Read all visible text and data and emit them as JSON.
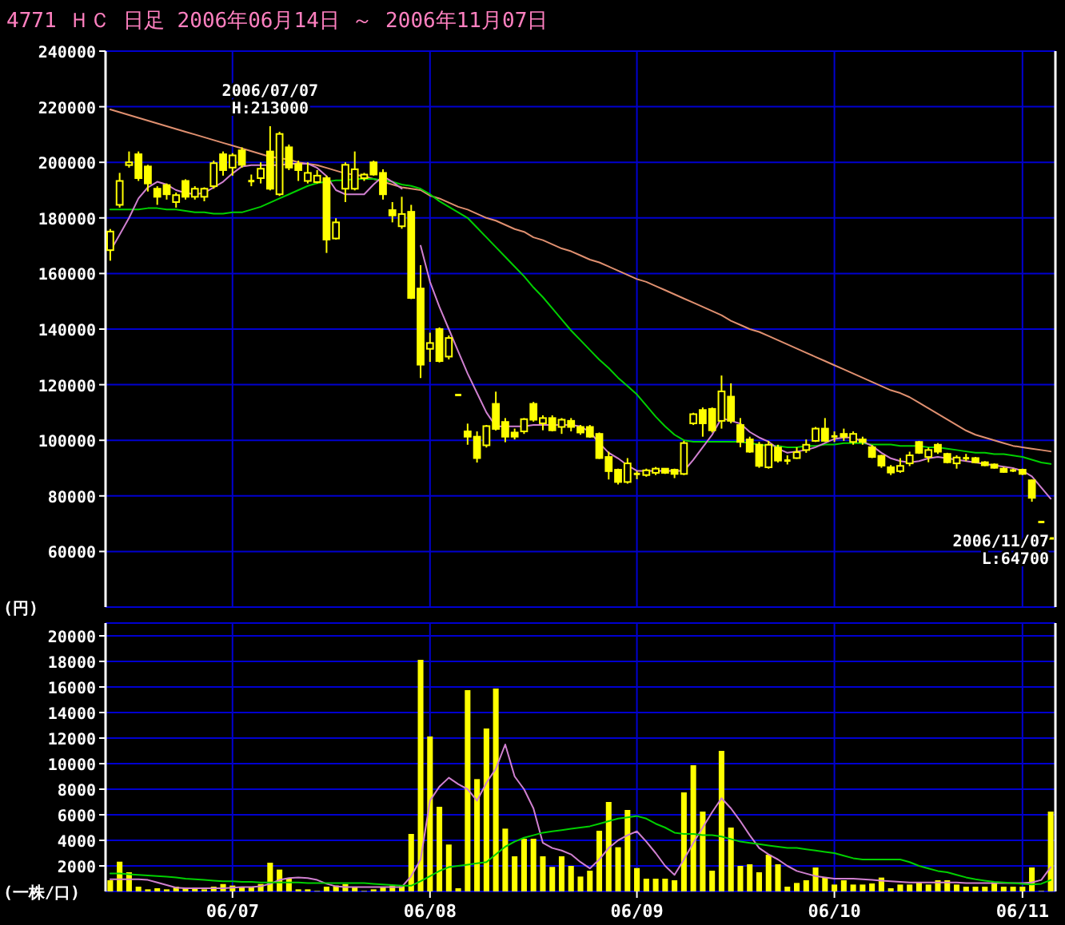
{
  "chart_data": [
    {
      "type": "candlestick",
      "title": "4771 ＨＣ 日足 2006年06月14日 ～ 2006年11月07日",
      "ylabel": "(円)",
      "color": "#ffff00",
      "grid": true,
      "tick_labels": "y",
      "categories": [
        null,
        null,
        null,
        null,
        null,
        null,
        null,
        null,
        null,
        null,
        null,
        null,
        null,
        null,
        null,
        null,
        null,
        null,
        null,
        null,
        null,
        null,
        null,
        null,
        null,
        null,
        null,
        null,
        null,
        null,
        null,
        null,
        null,
        null,
        null,
        null,
        null,
        null,
        null,
        null,
        null,
        null,
        null,
        null,
        null,
        null,
        null,
        null,
        null,
        null,
        null,
        null,
        null,
        null,
        null,
        null,
        null,
        null,
        null,
        null,
        null,
        null,
        null,
        null,
        null,
        null,
        null,
        null,
        null,
        null,
        null,
        null,
        null,
        null,
        null,
        null,
        null,
        null,
        null,
        null,
        null,
        null,
        null,
        null,
        null,
        null,
        null,
        null,
        null,
        null,
        null,
        null,
        null,
        null,
        null,
        null,
        null,
        null,
        null,
        null,
        null
      ],
      "ylim": [
        40000,
        240000
      ],
      "yticks": [
        60000,
        80000,
        100000,
        120000,
        140000,
        160000,
        180000,
        200000,
        220000,
        240000
      ],
      "ohlc": [
        [
          168400,
          176000,
          164600,
          175100
        ],
        [
          184700,
          196200,
          183700,
          193300
        ],
        [
          199000,
          203900,
          198100,
          200000
        ],
        [
          202900,
          203900,
          193300,
          194300
        ],
        [
          198500,
          199100,
          189500,
          192400
        ],
        [
          190500,
          191400,
          184700,
          187600
        ],
        [
          191800,
          192400,
          186600,
          188500
        ],
        [
          185700,
          189100,
          183700,
          188200
        ],
        [
          193300,
          193900,
          186600,
          187600
        ],
        [
          187600,
          191400,
          186600,
          190500
        ],
        [
          187600,
          191000,
          186000,
          190500
        ],
        [
          191400,
          200600,
          190500,
          199700
        ],
        [
          202900,
          203900,
          195200,
          197200
        ],
        [
          198100,
          203300,
          195200,
          202500
        ],
        [
          204300,
          205400,
          198100,
          199100
        ],
        [
          193600,
          195600,
          191400,
          192900
        ],
        [
          194300,
          200000,
          192400,
          197700
        ],
        [
          203900,
          213000,
          189900,
          190500
        ],
        [
          188500,
          211000,
          187900,
          210200
        ],
        [
          205400,
          206400,
          197200,
          198100
        ],
        [
          199400,
          200600,
          193300,
          197200
        ],
        [
          193300,
          200000,
          192400,
          196200
        ],
        [
          192900,
          197200,
          192400,
          195200
        ],
        [
          194300,
          195200,
          167400,
          172200
        ],
        [
          172600,
          179900,
          172200,
          178400
        ],
        [
          190500,
          200000,
          185700,
          199100
        ],
        [
          190500,
          203900,
          189900,
          197500
        ],
        [
          194300,
          196200,
          193300,
          195600
        ],
        [
          200000,
          200600,
          195200,
          195600
        ],
        [
          196200,
          197500,
          186600,
          188500
        ],
        [
          182800,
          185700,
          178400,
          180900
        ],
        [
          177000,
          187600,
          176100,
          181400
        ],
        [
          182200,
          184700,
          150800,
          151200
        ],
        [
          154600,
          163000,
          122400,
          127200
        ],
        [
          132900,
          138700,
          128200,
          135000
        ],
        [
          140000,
          140600,
          128000,
          128500
        ],
        [
          130100,
          137700,
          129100,
          136800
        ],
        [
          116300,
          116300,
          116300,
          116300
        ],
        [
          103200,
          106000,
          98400,
          101300
        ],
        [
          101300,
          103200,
          92000,
          93600
        ],
        [
          98200,
          105500,
          97400,
          105100
        ],
        [
          113100,
          117500,
          103500,
          104100
        ],
        [
          106600,
          108000,
          99300,
          101300
        ],
        [
          102800,
          104200,
          100300,
          101300
        ],
        [
          103200,
          108000,
          102300,
          107600
        ],
        [
          113100,
          113800,
          106700,
          107400
        ],
        [
          106100,
          109000,
          103600,
          108000
        ],
        [
          108000,
          109000,
          103200,
          103600
        ],
        [
          104800,
          108000,
          102300,
          107400
        ],
        [
          107000,
          108000,
          103200,
          104800
        ],
        [
          104800,
          105500,
          102000,
          102800
        ],
        [
          104800,
          105500,
          100900,
          101300
        ],
        [
          102300,
          102800,
          93300,
          93600
        ],
        [
          94000,
          95900,
          85900,
          88900
        ],
        [
          89400,
          89800,
          84100,
          85000
        ],
        [
          85000,
          93600,
          84400,
          91700
        ],
        [
          88300,
          88900,
          86000,
          87500
        ],
        [
          87500,
          89800,
          86900,
          89200
        ],
        [
          88300,
          90400,
          87500,
          89800
        ],
        [
          89800,
          89800,
          87900,
          88300
        ],
        [
          89400,
          89800,
          86400,
          87900
        ],
        [
          87900,
          99800,
          87500,
          99000
        ],
        [
          106100,
          109900,
          105500,
          109400
        ],
        [
          110900,
          111800,
          101300,
          106100
        ],
        [
          111300,
          111800,
          102800,
          103600
        ],
        [
          107000,
          123300,
          104200,
          117600
        ],
        [
          115700,
          120500,
          106100,
          107000
        ],
        [
          105500,
          108000,
          97500,
          99400
        ],
        [
          100300,
          101300,
          95500,
          95900
        ],
        [
          98400,
          99400,
          90100,
          90800
        ],
        [
          90300,
          99800,
          89800,
          98400
        ],
        [
          97400,
          98400,
          92000,
          92700
        ],
        [
          92900,
          94600,
          91300,
          92500
        ],
        [
          93600,
          97500,
          93300,
          95700
        ],
        [
          96500,
          100300,
          95500,
          98400
        ],
        [
          99800,
          104800,
          99400,
          104200
        ],
        [
          104200,
          108000,
          99400,
          99800
        ],
        [
          101500,
          103200,
          99400,
          101300
        ],
        [
          102300,
          104200,
          99800,
          101300
        ],
        [
          99400,
          103200,
          98400,
          102300
        ],
        [
          100300,
          101300,
          98400,
          99400
        ],
        [
          97500,
          98300,
          93600,
          94000
        ],
        [
          94400,
          94800,
          90100,
          90900
        ],
        [
          90300,
          91100,
          87500,
          88400
        ],
        [
          88900,
          93600,
          88300,
          90800
        ],
        [
          91700,
          95900,
          90700,
          94600
        ],
        [
          99400,
          99800,
          95100,
          95500
        ],
        [
          94000,
          97400,
          92100,
          96500
        ],
        [
          98400,
          99000,
          95100,
          95900
        ],
        [
          95100,
          95500,
          91700,
          92100
        ],
        [
          91700,
          94600,
          89800,
          93800
        ],
        [
          93800,
          95100,
          92500,
          93300
        ],
        [
          93600,
          94000,
          91700,
          92100
        ],
        [
          92100,
          92500,
          90700,
          91000
        ],
        [
          91300,
          91700,
          89800,
          90100
        ],
        [
          89800,
          90400,
          88300,
          88600
        ],
        [
          89400,
          89800,
          88600,
          88900
        ],
        [
          89400,
          89800,
          87500,
          87900
        ],
        [
          85600,
          85900,
          77900,
          79300
        ],
        [
          70600,
          70600,
          70600,
          70600
        ],
        [
          64700,
          64700,
          64700,
          64700
        ]
      ],
      "series": [
        {
          "type": "line",
          "color": "#e09070",
          "values": [
            219000,
            218000,
            217000,
            216000,
            215000,
            214000,
            213000,
            212000,
            211000,
            210000,
            209000,
            208000,
            207000,
            206000,
            205000,
            204000,
            203000,
            202000,
            201500,
            201000,
            200000,
            199500,
            199000,
            198000,
            197000,
            196000,
            195500,
            195000,
            194000,
            193000,
            192000,
            191000,
            190500,
            190000,
            188000,
            187000,
            185500,
            184000,
            183000,
            181500,
            180000,
            179000,
            177500,
            176000,
            175000,
            173000,
            172000,
            170500,
            169000,
            168000,
            166500,
            165000,
            164000,
            162500,
            161000,
            159500,
            158000,
            157000,
            155500,
            154000,
            152500,
            151000,
            149500,
            148000,
            146500,
            145000,
            143000,
            141500,
            140000,
            139000,
            137500,
            136000,
            134500,
            133000,
            131500,
            130000,
            128500,
            127000,
            125500,
            124000,
            122500,
            121000,
            119500,
            118000,
            117000,
            115500,
            113500,
            111500,
            109500,
            107500,
            105500,
            103500,
            102000,
            101000,
            100000,
            99000,
            98000,
            97500,
            97000,
            96500,
            96000
          ]
        },
        {
          "type": "line",
          "color": "#00d000",
          "values": [
            183000,
            183000,
            183000,
            183000,
            183500,
            183500,
            183000,
            183000,
            182500,
            182000,
            182000,
            181500,
            181500,
            182000,
            182000,
            183000,
            184000,
            185500,
            187000,
            188500,
            190000,
            191500,
            192500,
            193000,
            193500,
            193500,
            194000,
            194000,
            194000,
            193500,
            193000,
            192000,
            191500,
            190500,
            188500,
            186000,
            184000,
            182000,
            180000,
            176500,
            173000,
            169500,
            166000,
            162500,
            159000,
            155000,
            151500,
            147500,
            143500,
            139500,
            136000,
            132500,
            129000,
            126000,
            122500,
            119500,
            116500,
            112500,
            108500,
            105000,
            102000,
            100000,
            99500,
            99500,
            99500,
            99500,
            99500,
            99500,
            99000,
            98500,
            98000,
            98000,
            97500,
            97500,
            98000,
            98000,
            98500,
            98500,
            99000,
            99000,
            99000,
            98500,
            98500,
            98500,
            98000,
            98000,
            98000,
            97500,
            97500,
            97000,
            96500,
            96000,
            95500,
            95500,
            95000,
            95000,
            94500,
            94000,
            93000,
            92000,
            91500
          ]
        },
        {
          "type": "line",
          "color": "#d080d0",
          "values": [
            168000,
            174000,
            180000,
            187000,
            191000,
            193000,
            192000,
            190000,
            189000,
            188500,
            189000,
            191000,
            193000,
            196000,
            198500,
            199000,
            199000,
            199000,
            199000,
            199500,
            199500,
            199500,
            198000,
            195000,
            190000,
            188500,
            188500,
            188500,
            192000,
            195000,
            193000,
            190500,
            null,
            170000,
            157000,
            148000,
            140000,
            132000,
            124000,
            117000,
            110000,
            105000,
            105000,
            105000,
            105000,
            105500,
            105500,
            105500,
            105500,
            105500,
            105000,
            103000,
            99000,
            95500,
            93500,
            91000,
            89000,
            89000,
            89000,
            89000,
            89000,
            89000,
            93000,
            97500,
            102000,
            108000,
            107000,
            106000,
            103000,
            101000,
            99500,
            97000,
            95500,
            96000,
            96500,
            97500,
            99000,
            100500,
            101000,
            101000,
            99500,
            98000,
            95500,
            93500,
            92500,
            92000,
            92500,
            93500,
            94000,
            93500,
            93000,
            92500,
            92000,
            91500,
            91000,
            90500,
            90000,
            89000,
            87000,
            83000,
            79000
          ]
        }
      ],
      "annotations": [
        {
          "text": "2006/07/07\nH:213000",
          "y": 213000
        },
        "2006/11/07\nL:64700"
      ]
    },
    {
      "type": "bar",
      "ylabel": "(一株/口)",
      "grid": true,
      "categories": [
        null,
        null,
        null,
        null,
        null,
        null,
        null,
        null,
        null,
        null,
        null,
        null,
        null,
        "06/07",
        null,
        null,
        null,
        null,
        null,
        null,
        null,
        null,
        null,
        null,
        null,
        null,
        null,
        null,
        null,
        null,
        null,
        null,
        null,
        null,
        "06/08",
        null,
        null,
        null,
        null,
        null,
        null,
        null,
        null,
        null,
        null,
        null,
        null,
        null,
        null,
        null,
        null,
        null,
        null,
        null,
        null,
        null,
        "06/09",
        null,
        null,
        null,
        null,
        null,
        null,
        null,
        null,
        null,
        null,
        null,
        null,
        null,
        null,
        null,
        null,
        null,
        null,
        null,
        null,
        "06/10",
        null,
        null,
        null,
        null,
        null,
        null,
        null,
        null,
        null,
        null,
        null,
        null,
        null,
        null,
        null,
        null,
        null,
        null,
        null,
        "06/11",
        null,
        null,
        null
      ],
      "ylim": [
        0,
        21000
      ],
      "yticks": [
        2000,
        4000,
        6000,
        8000,
        10000,
        12000,
        14000,
        16000,
        18000,
        20000
      ],
      "series": [
        {
          "type": "bar",
          "color": "#ffff00",
          "values": [
            875,
            2330,
            1500,
            375,
            165,
            250,
            165,
            375,
            250,
            250,
            165,
            375,
            580,
            460,
            330,
            330,
            580,
            2250,
            1710,
            1000,
            165,
            165,
            40,
            375,
            460,
            580,
            330,
            40,
            165,
            375,
            460,
            460,
            4500,
            18125,
            12125,
            6625,
            3670,
            250,
            15750,
            8790,
            12750,
            15875,
            4915,
            2750,
            4125,
            4125,
            2750,
            1920,
            2750,
            2000,
            1165,
            1625,
            4750,
            7000,
            3460,
            6375,
            1830,
            1000,
            1000,
            1000,
            875,
            7750,
            9875,
            6250,
            1625,
            11000,
            5000,
            2000,
            2125,
            1500,
            2875,
            2125,
            375,
            665,
            875,
            1875,
            1085,
            540,
            875,
            540,
            540,
            625,
            1085,
            250,
            540,
            540,
            750,
            540,
            875,
            875,
            540,
            375,
            375,
            375,
            750,
            375,
            375,
            375,
            1875,
            40,
            6250
          ]
        },
        {
          "type": "line",
          "color": "#d080d0",
          "values": [
            950,
            950,
            950,
            950,
            900,
            700,
            500,
            300,
            250,
            250,
            250,
            250,
            250,
            300,
            350,
            350,
            400,
            600,
            900,
            1050,
            1100,
            1050,
            900,
            600,
            400,
            350,
            350,
            350,
            350,
            350,
            350,
            350,
            1200,
            2500,
            7100,
            8200,
            8900,
            8400,
            8000,
            7100,
            8500,
            9600,
            11500,
            9000,
            8000,
            6500,
            3800,
            3400,
            3200,
            2900,
            2300,
            1800,
            2500,
            3400,
            4000,
            4400,
            4700,
            3900,
            3000,
            2000,
            1300,
            2500,
            3800,
            5000,
            6200,
            7300,
            6500,
            5500,
            4400,
            3400,
            2900,
            2500,
            2000,
            1600,
            1400,
            1200,
            1100,
            1000,
            1000,
            1000,
            950,
            900,
            850,
            800,
            750,
            700,
            700,
            700,
            700,
            700,
            700,
            650,
            650,
            650,
            650,
            650,
            650,
            650,
            700,
            900,
            1900
          ]
        },
        {
          "type": "line",
          "color": "#00d000",
          "values": [
            1400,
            1400,
            1350,
            1300,
            1250,
            1200,
            1150,
            1100,
            1000,
            950,
            900,
            850,
            800,
            800,
            750,
            750,
            700,
            700,
            700,
            700,
            700,
            650,
            650,
            650,
            650,
            650,
            650,
            650,
            600,
            550,
            500,
            450,
            450,
            800,
            1200,
            1600,
            1900,
            2000,
            2100,
            2200,
            2300,
            2900,
            3500,
            3900,
            4200,
            4400,
            4600,
            4700,
            4800,
            4900,
            5000,
            5100,
            5300,
            5500,
            5700,
            5800,
            5900,
            5700,
            5300,
            5000,
            4600,
            4500,
            4500,
            4400,
            4400,
            4300,
            4100,
            3900,
            3800,
            3700,
            3600,
            3500,
            3400,
            3400,
            3300,
            3200,
            3100,
            3000,
            2800,
            2600,
            2500,
            2500,
            2500,
            2500,
            2500,
            2300,
            2000,
            1800,
            1600,
            1500,
            1300,
            1100,
            950,
            850,
            750,
            700,
            650,
            600,
            550,
            600,
            900
          ]
        }
      ]
    }
  ]
}
